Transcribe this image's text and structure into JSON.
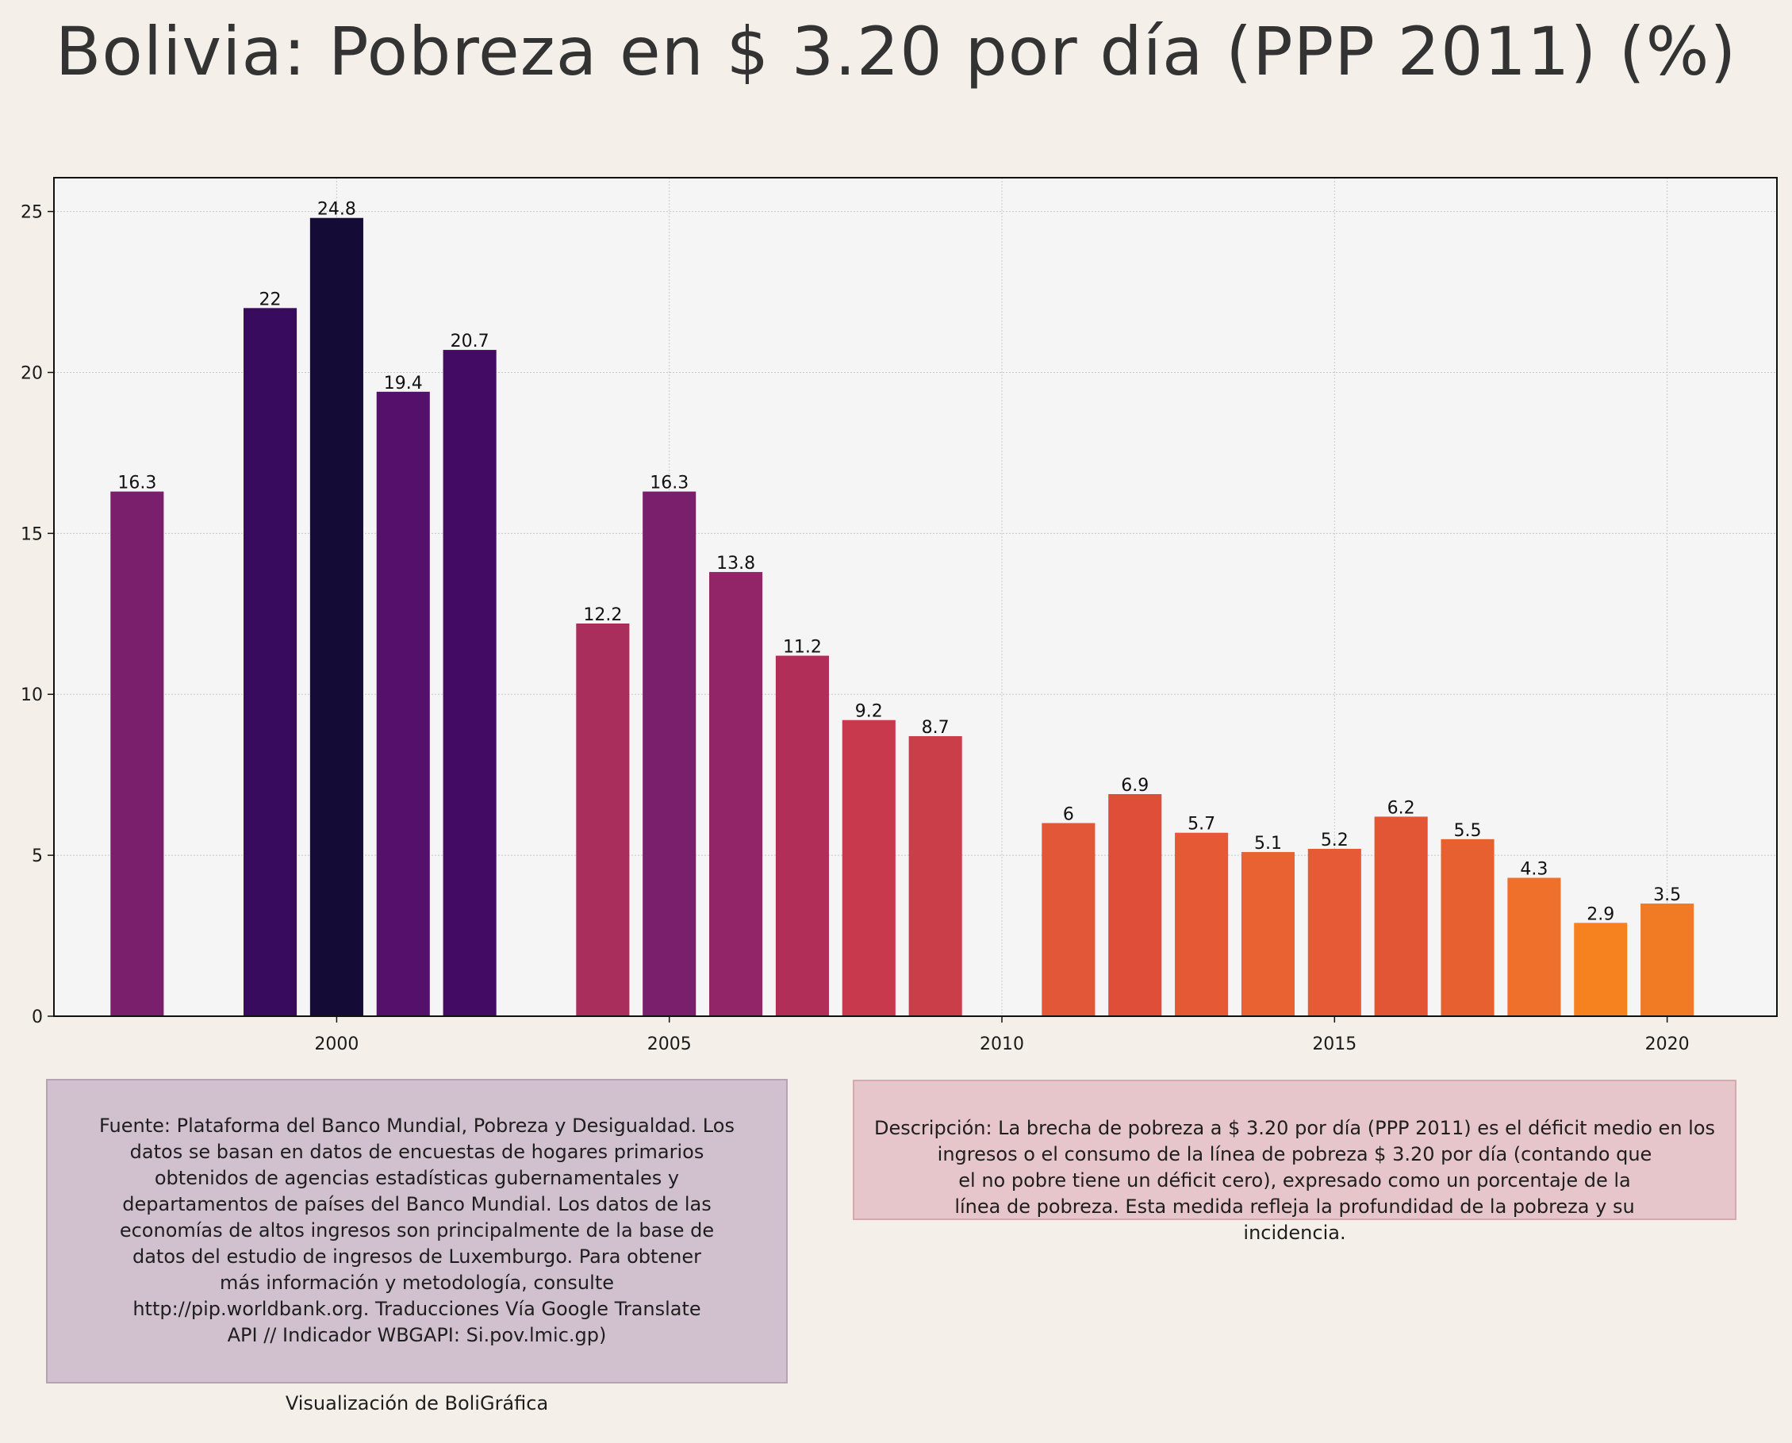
{
  "title": "Bolivia:  Pobreza en $ 3.20 por día (PPP 2011) (%)",
  "chart_data": {
    "type": "bar",
    "title": "Bolivia:  Pobreza en $ 3.20 por día (PPP 2011) (%)",
    "xlabel": "",
    "ylabel": "",
    "x": [
      1997,
      1999,
      2000,
      2001,
      2002,
      2004,
      2005,
      2006,
      2007,
      2008,
      2009,
      2011,
      2012,
      2013,
      2014,
      2015,
      2016,
      2017,
      2018,
      2019,
      2020
    ],
    "values": [
      16.3,
      22,
      24.8,
      19.4,
      20.7,
      12.2,
      16.3,
      13.8,
      11.2,
      9.2,
      8.7,
      6,
      6.9,
      5.7,
      5.1,
      5.2,
      6.2,
      5.5,
      4.3,
      2.9,
      3.5
    ],
    "data_labels": [
      "16.3",
      "22",
      "24.8",
      "19.4",
      "20.7",
      "12.2",
      "16.3",
      "13.8",
      "11.2",
      "9.2",
      "8.7",
      "6",
      "6.9",
      "5.7",
      "5.1",
      "5.2",
      "6.2",
      "5.5",
      "4.3",
      "2.9",
      "3.5"
    ],
    "colors": [
      "#7a1f6c",
      "#380b5e",
      "#150b37",
      "#55106b",
      "#430b63",
      "#aa2e5c",
      "#7a1f6c",
      "#922567",
      "#b02e57",
      "#c8394d",
      "#c93e49",
      "#e25737",
      "#de4e39",
      "#e55935",
      "#e86232",
      "#e65b35",
      "#e25636",
      "#e76130",
      "#ee702a",
      "#f6821f",
      "#f17a25"
    ],
    "x_ticks": [
      2000,
      2005,
      2010,
      2015,
      2020
    ],
    "y_ticks": [
      0,
      5,
      10,
      15,
      20,
      25
    ],
    "xlim": [
      1995.75,
      2021.65
    ],
    "ylim": [
      0,
      26.05
    ],
    "grid": true,
    "legend": "none"
  },
  "source_box": {
    "text": "Fuente: Plataforma del Banco Mundial, Pobreza y Desigualdad. Los\ndatos se basan en datos de encuestas de hogares primarios\nobtenidos de agencias estadísticas gubernamentales y\ndepartamentos de países del Banco Mundial. Los datos de las\neconomías de altos ingresos son principalmente de la base de\ndatos del estudio de ingresos de Luxemburgo. Para obtener\nmás información y metodología, consulte\nhttp://pip.worldbank.org. Traducciones Vía Google Translate\nAPI // Indicador WBGAPI: Si.pov.lmic.gp)",
    "credit": "Visualización de BoliGráfica",
    "background": "#d1c1cf"
  },
  "description_box": {
    "text": "Descripción: La brecha de pobreza a $ 3.20 por día (PPP 2011) es el déficit medio en los\ningresos o el consumo de la línea de pobreza $ 3.20 por día (contando que\nel no pobre tiene un déficit cero), expresado como un porcentaje de la\nlínea de pobreza. Esta medida refleja la profundidad de la pobreza y su\nincidencia.",
    "background": "#e6c6ca"
  }
}
